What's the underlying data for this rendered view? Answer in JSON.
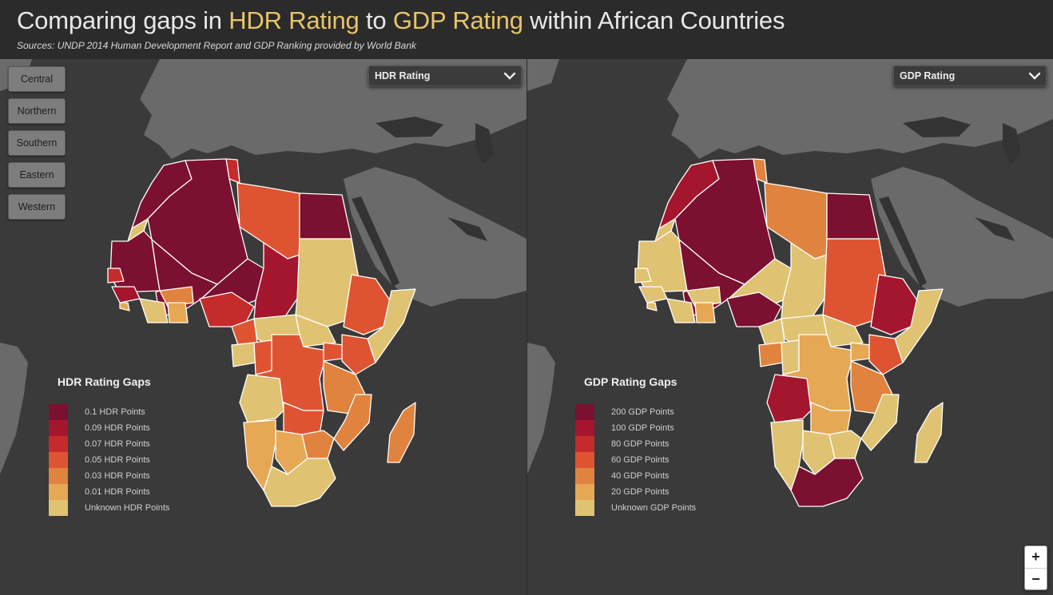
{
  "header": {
    "title_pre": "Comparing gaps in ",
    "title_hl1": "HDR Rating",
    "title_mid": " to ",
    "title_hl2": "GDP Rating",
    "title_post": " within African Countries",
    "subtitle": "Sources: UNDP 2014 Human Development Report and GDP Ranking provided by World Bank"
  },
  "region_buttons": [
    "Central",
    "Northern",
    "Southern",
    "Eastern",
    "Western"
  ],
  "left_map": {
    "dropdown_label": "HDR Rating",
    "legend_title": "HDR Rating Gaps",
    "legend": [
      {
        "label": "0.1 HDR Points",
        "color": "#7b1030"
      },
      {
        "label": "0.09 HDR Points",
        "color": "#a4152e"
      },
      {
        "label": "0.07 HDR Points",
        "color": "#c52b2b"
      },
      {
        "label": "0.05 HDR Points",
        "color": "#de5432"
      },
      {
        "label": "0.03 HDR Points",
        "color": "#e0833f"
      },
      {
        "label": "0.01 HDR Points",
        "color": "#e6a855"
      },
      {
        "label": "Unknown HDR Points",
        "color": "#dfc272"
      }
    ]
  },
  "right_map": {
    "dropdown_label": "GDP Rating",
    "legend_title": "GDP Rating Gaps",
    "legend": [
      {
        "label": "200 GDP Points",
        "color": "#7b1030"
      },
      {
        "label": "100 GDP Points",
        "color": "#a4152e"
      },
      {
        "label": "80 GDP Points",
        "color": "#c52b2b"
      },
      {
        "label": "60 GDP Points",
        "color": "#de5432"
      },
      {
        "label": "40 GDP Points",
        "color": "#e0833f"
      },
      {
        "label": "20 GDP Points",
        "color": "#e6a855"
      },
      {
        "label": "Unknown GDP Points",
        "color": "#dfc272"
      }
    ]
  },
  "colors": {
    "header_bg": "#2b2b2b",
    "map_bg": "#3a3a3a",
    "land": "#6a6a6a",
    "highlight": "#e8c46a"
  },
  "zoom": {
    "in": "+",
    "out": "−"
  }
}
